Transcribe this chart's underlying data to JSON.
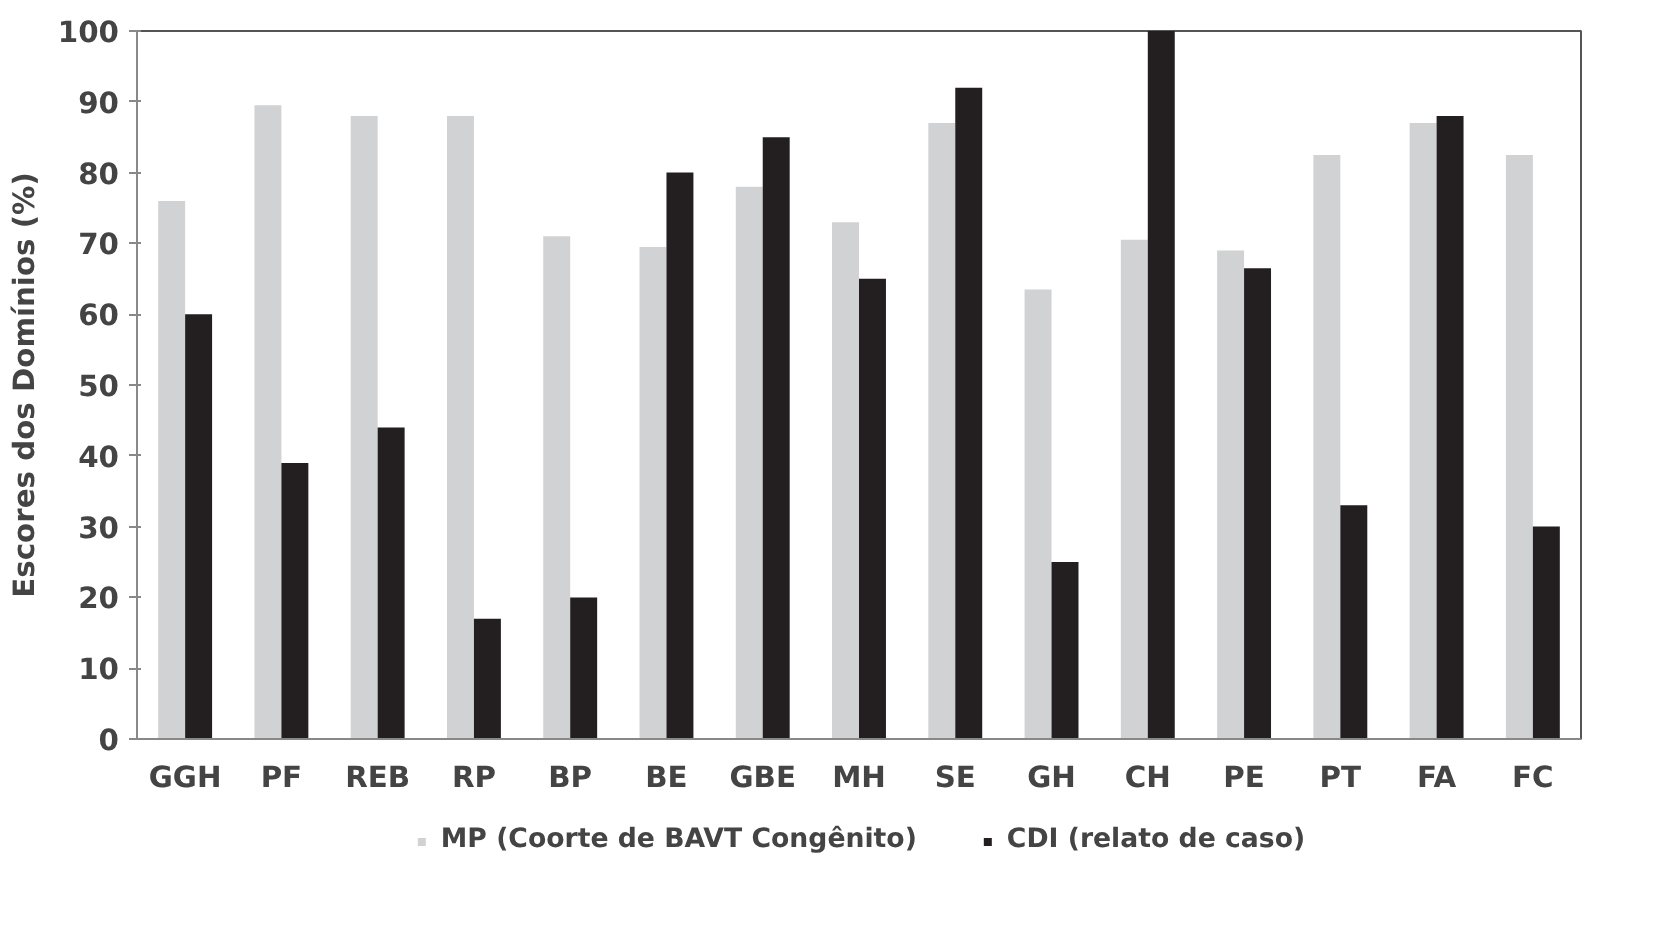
{
  "chart_data": {
    "type": "bar",
    "ylabel": "Escores dos Domínios (%)",
    "categories": [
      "GGH",
      "PF",
      "REB",
      "RP",
      "BP",
      "BE",
      "GBE",
      "MH",
      "SE",
      "GH",
      "CH",
      "PE",
      "PT",
      "FA",
      "FC"
    ],
    "series": [
      {
        "name": "MP (Coorte de BAVT Congênito)",
        "color": "#d1d2d4",
        "values": [
          76,
          89.5,
          88,
          88,
          71,
          69.5,
          78,
          73,
          87,
          63.5,
          70.5,
          69,
          82.5,
          87,
          82.5
        ]
      },
      {
        "name": "CDI (relato de caso)",
        "color": "#231f20",
        "values": [
          60,
          39,
          44,
          17,
          20,
          80,
          85,
          65,
          92,
          25,
          100,
          66.5,
          33,
          88,
          30
        ]
      }
    ],
    "ylim": [
      0,
      100
    ],
    "yticks": [
      0,
      10,
      20,
      30,
      40,
      50,
      60,
      70,
      80,
      90,
      100
    ],
    "grid": false,
    "legend": "bottom"
  }
}
